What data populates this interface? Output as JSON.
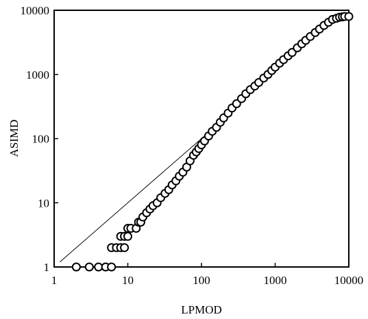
{
  "chart_data": {
    "type": "scatter",
    "title": "",
    "xlabel": "LPMOD",
    "ylabel": "ASIMD",
    "x_scale": "log",
    "y_scale": "log",
    "xlim": [
      1,
      10000
    ],
    "ylim": [
      1,
      10000
    ],
    "x_ticks": [
      1,
      10,
      100,
      1000,
      10000
    ],
    "y_ticks": [
      1,
      10,
      100,
      1000,
      10000
    ],
    "x_tick_labels": [
      "1",
      "10",
      "100",
      "1000",
      "10000"
    ],
    "y_tick_labels": [
      "1",
      "10",
      "100",
      "1000",
      "10000"
    ],
    "grid": false,
    "legend": "none",
    "reference_line": {
      "type": "y=x",
      "from": [
        1.2,
        1.2
      ],
      "to": [
        200,
        200
      ]
    },
    "series": [
      {
        "marker": "open-circle",
        "x": [
          2,
          3,
          4,
          5,
          6,
          6,
          7,
          8,
          9,
          8,
          9,
          10,
          10,
          11,
          13,
          14,
          15,
          16,
          18,
          20,
          22,
          25,
          28,
          32,
          36,
          40,
          45,
          50,
          56,
          63,
          70,
          78,
          85,
          92,
          100,
          110,
          125,
          140,
          160,
          180,
          200,
          230,
          260,
          300,
          350,
          400,
          460,
          530,
          600,
          700,
          800,
          900,
          1000,
          1150,
          1300,
          1500,
          1700,
          2000,
          2300,
          2600,
          3000,
          3500,
          4000,
          4600,
          5300,
          6000,
          6800,
          7500,
          8200,
          8800,
          10000
        ],
        "y": [
          1,
          1,
          1,
          1,
          1,
          2,
          2,
          2,
          2,
          3,
          3,
          3,
          4,
          4,
          4,
          5,
          5,
          6,
          7,
          8,
          9,
          10,
          12,
          14,
          16,
          19,
          22,
          26,
          30,
          36,
          45,
          55,
          62,
          70,
          80,
          92,
          110,
          130,
          150,
          180,
          210,
          250,
          300,
          350,
          420,
          500,
          580,
          660,
          750,
          880,
          1000,
          1150,
          1300,
          1500,
          1700,
          1950,
          2200,
          2600,
          3000,
          3400,
          3900,
          4500,
          5100,
          5800,
          6500,
          7200,
          7500,
          7800,
          7900,
          8000,
          8000
        ]
      }
    ]
  },
  "colors": {
    "background": "#ffffff",
    "ink": "#000000",
    "marker_fill": "#ffffff"
  }
}
